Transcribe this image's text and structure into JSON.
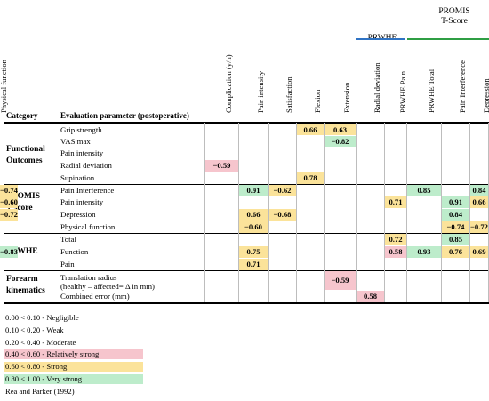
{
  "header": {
    "category": "Category",
    "parameter": "Evaluation parameter (postoperative)"
  },
  "groups": [
    {
      "label": "PRWHE",
      "color": "#2f73c4"
    },
    {
      "label": "PROMIS\nT-Score",
      "color": "#2f9e44"
    }
  ],
  "columns": [
    "Complication (y/n)",
    "Pain intensity",
    "Satisfaction",
    "Flexion",
    "Extension",
    "Radial deviation",
    "PRWHE Pain",
    "PRWHE Total",
    "Pain Interference",
    "Depression",
    "Physical function"
  ],
  "categories": [
    {
      "label": "Functional\nOutcomes"
    },
    {
      "label": "PROMIS\nT-score"
    },
    {
      "label": "PRWHE"
    },
    {
      "label": "Forearm\nkinematics"
    }
  ],
  "rows": [
    {
      "label": "Grip strength",
      "cells": [
        null,
        null,
        null,
        "0.66",
        "0.63",
        null,
        null,
        null,
        null,
        null,
        null
      ]
    },
    {
      "label": "VAS max",
      "cells": [
        null,
        null,
        null,
        null,
        "−0.82",
        null,
        null,
        null,
        null,
        null,
        null
      ]
    },
    {
      "label": "Pain intensity",
      "cells": [
        null,
        null,
        null,
        null,
        null,
        null,
        null,
        null,
        null,
        null,
        null
      ]
    },
    {
      "label": "Radial deviation",
      "cells": [
        "−0.59",
        null,
        null,
        null,
        null,
        null,
        null,
        null,
        null,
        null,
        null
      ]
    },
    {
      "label": "Supination",
      "cells": [
        null,
        null,
        null,
        "0.78",
        null,
        null,
        null,
        null,
        null,
        null,
        null
      ]
    },
    {
      "label": "Pain Interference",
      "cells": [
        null,
        "0.91",
        "−0.62",
        null,
        null,
        null,
        null,
        "0.85",
        null,
        "0.84",
        "−0.74"
      ]
    },
    {
      "label": "Pain intensity",
      "cells": [
        null,
        null,
        null,
        null,
        null,
        null,
        "0.71",
        null,
        "0.91",
        "0.66",
        "−0.60"
      ]
    },
    {
      "label": "Depression",
      "cells": [
        null,
        "0.66",
        "−0.68",
        null,
        null,
        null,
        null,
        null,
        "0.84",
        null,
        "−0.72"
      ]
    },
    {
      "label": "Physical function",
      "cells": [
        null,
        "−0.60",
        null,
        null,
        null,
        null,
        null,
        null,
        "−0.74",
        "−0.72",
        null
      ]
    },
    {
      "label": "Total",
      "cells": [
        null,
        null,
        null,
        null,
        null,
        null,
        "0.72",
        null,
        "0.85",
        null,
        null
      ]
    },
    {
      "label": "Function",
      "cells": [
        null,
        "0.75",
        null,
        null,
        null,
        null,
        "0.58",
        "0.93",
        "0.76",
        "0.69",
        "−0.83"
      ]
    },
    {
      "label": "Pain",
      "cells": [
        null,
        "0.71",
        null,
        null,
        null,
        null,
        null,
        null,
        null,
        null,
        null
      ]
    },
    {
      "label": "Translation radius\n(healthy – affected= Δ in mm)",
      "cells": [
        null,
        null,
        null,
        null,
        "−0.59",
        null,
        null,
        null,
        null,
        null,
        null
      ]
    },
    {
      "label": "Combined error (mm)",
      "cells": [
        null,
        null,
        null,
        null,
        null,
        "0.58",
        null,
        null,
        null,
        null,
        null
      ]
    }
  ],
  "legend": [
    {
      "text": "0.00 < 0.10 - Negligible",
      "bg": ""
    },
    {
      "text": "0.10 < 0.20 - Weak",
      "bg": ""
    },
    {
      "text": "0.20 < 0.40 - Moderate",
      "bg": ""
    },
    {
      "text": "0.40 < 0.60 - Relatively strong",
      "bg": "#f6c5cd"
    },
    {
      "text": "0.60 < 0.80 - Strong",
      "bg": "#fbe39a"
    },
    {
      "text": "0.80 < 1.00 - Very strong",
      "bg": "#bdeccb"
    }
  ],
  "citation": "Rea and Parker (1992)",
  "colors": {
    "relatively_strong": "#f6c5cd",
    "strong": "#fbe39a",
    "very_strong": "#bdeccb"
  }
}
